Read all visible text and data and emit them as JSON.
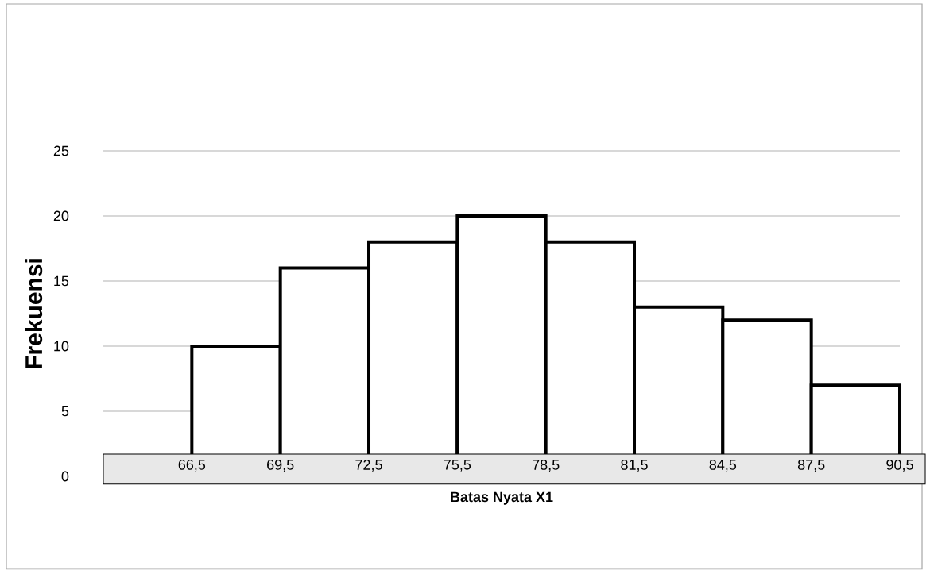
{
  "chart_data": {
    "type": "histogram",
    "xlabel": "Batas Nyata X1",
    "ylabel": "Frekuensi",
    "bins": [
      66.5,
      69.5,
      72.5,
      75.5,
      78.5,
      81.5,
      84.5,
      87.5,
      90.5
    ],
    "values": [
      10,
      16,
      18,
      20,
      18,
      13,
      12,
      7
    ],
    "xlim": [
      63.5,
      90.5
    ],
    "xticks": [
      {
        "value": 66.5,
        "label": "66,5"
      },
      {
        "value": 69.5,
        "label": "69,5"
      },
      {
        "value": 72.5,
        "label": "72,5"
      },
      {
        "value": 75.5,
        "label": "75,5"
      },
      {
        "value": 78.5,
        "label": "78,5"
      },
      {
        "value": 81.5,
        "label": "81,5"
      },
      {
        "value": 84.5,
        "label": "84,5"
      },
      {
        "value": 87.5,
        "label": "87,5"
      },
      {
        "value": 90.5,
        "label": "90,5"
      }
    ],
    "ylim": [
      0,
      25
    ],
    "yticks": [
      0,
      5,
      10,
      15,
      20,
      25
    ],
    "grid": "y"
  }
}
